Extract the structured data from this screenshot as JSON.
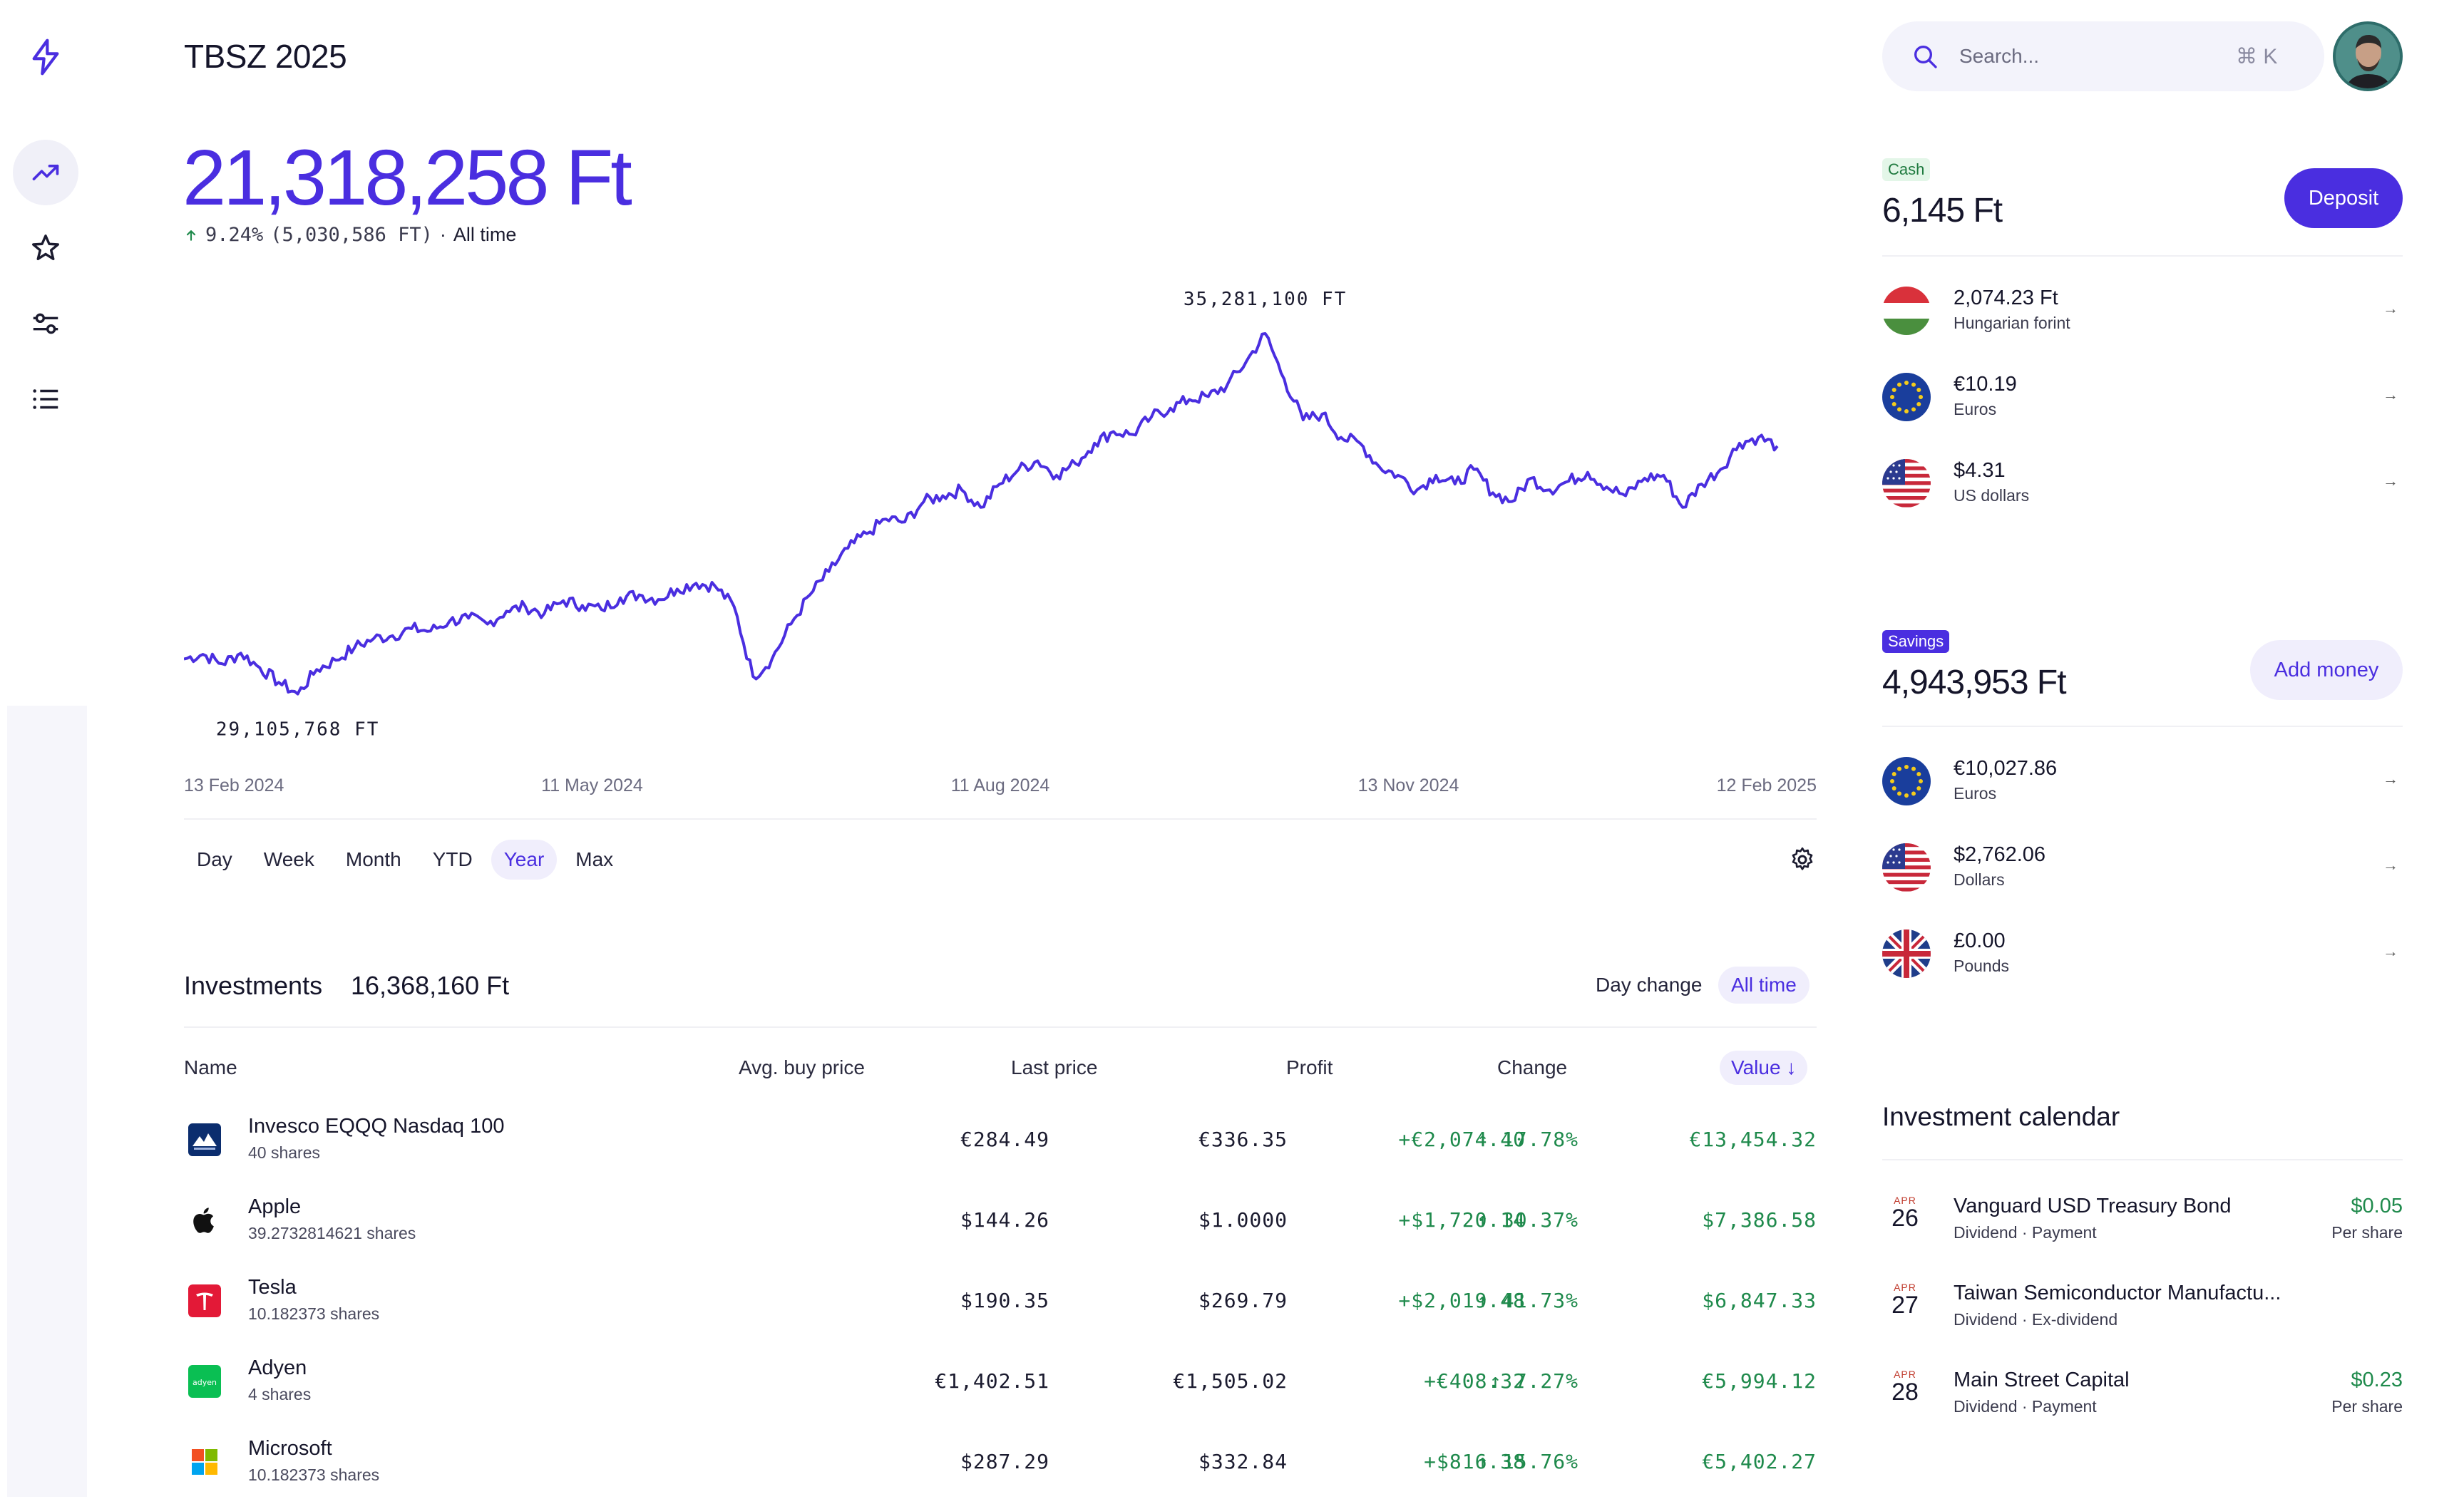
{
  "header": {
    "title": "TBSZ 2025",
    "search_placeholder": "Search...",
    "shortcut": "⌘ K"
  },
  "sidebar": {
    "items": [
      {
        "icon": "lightning-logo-icon"
      },
      {
        "icon": "trending-up-icon",
        "active": true
      },
      {
        "icon": "star-icon"
      },
      {
        "icon": "sliders-icon"
      },
      {
        "icon": "list-icon"
      }
    ]
  },
  "portfolio": {
    "value": "21,318,258 Ft",
    "gain_pct": "9.24%",
    "gain_abs": "(5,030,586 FT)",
    "period": "All time"
  },
  "chart_data": {
    "type": "line",
    "title": "",
    "xlabel": "",
    "ylabel": "",
    "x_tick_labels": [
      "13 Feb 2024",
      "11 May 2024",
      "11 Aug 2024",
      "13 Nov 2024",
      "12 Feb 2025"
    ],
    "annotations": {
      "max_label": "35,281,100 FT",
      "min_label": "29,105,768 FT"
    },
    "color": "#4a2ee0",
    "series": [
      {
        "values": [
          29.7,
          29.78,
          29.62,
          29.8,
          29.55,
          29.3,
          29.1,
          29.52,
          29.68,
          29.9,
          30.05,
          30.1,
          30.22,
          30.18,
          30.35,
          30.4,
          30.3,
          30.52,
          30.6,
          30.48,
          30.7,
          30.62,
          30.55,
          30.75,
          30.8,
          30.72,
          30.9,
          31.0,
          30.95,
          30.6,
          29.4,
          29.7,
          30.3,
          30.8,
          31.2,
          31.6,
          31.85,
          32.1,
          32.05,
          32.4,
          32.5,
          32.6,
          32.3,
          32.7,
          32.95,
          33.1,
          32.85,
          33.05,
          33.4,
          33.6,
          33.55,
          33.85,
          34.0,
          34.15,
          34.2,
          34.4,
          34.8,
          35.28,
          34.5,
          33.8,
          33.9,
          33.5,
          33.4,
          33.0,
          32.85,
          32.6,
          32.85,
          32.7,
          32.95,
          32.55,
          32.4,
          32.8,
          32.6,
          32.75,
          32.9,
          32.65,
          32.5,
          32.8,
          32.85,
          32.3,
          32.7,
          32.95,
          33.4,
          33.5,
          33.35
        ]
      }
    ]
  },
  "ranges": [
    "Day",
    "Week",
    "Month",
    "YTD",
    "Year",
    "Max"
  ],
  "active_range": "Year",
  "investments": {
    "title": "Investments",
    "total": "16,368,160 Ft",
    "toggles": [
      "Day change",
      "All time"
    ],
    "columns": [
      "Name",
      "Avg. buy price",
      "Last price",
      "Profit",
      "Change",
      "Value ↓"
    ],
    "rows": [
      {
        "name": "Invesco EQQQ Nasdaq 100",
        "shares": "40 shares",
        "avg": "€284.49",
        "last": "€336.35",
        "profit": "+€2,074.40",
        "change": "↑ 17.78%",
        "value": "€13,454.32",
        "logo": "invesco"
      },
      {
        "name": "Apple",
        "shares": "39.2732814621 shares",
        "avg": "$144.26",
        "last": "$1.0000",
        "profit": "+$1,720.14",
        "change": "↑ 30.37%",
        "value": "$7,386.58",
        "logo": "apple"
      },
      {
        "name": "Tesla",
        "shares": "10.182373 shares",
        "avg": "$190.35",
        "last": "$269.79",
        "profit": "+$2,019.48",
        "change": "↑ 41.73%",
        "value": "$6,847.33",
        "logo": "tesla"
      },
      {
        "name": "Adyen",
        "shares": "4 shares",
        "avg": "€1,402.51",
        "last": "€1,505.02",
        "profit": "+€408.32",
        "change": "↑ 7.27%",
        "value": "€5,994.12",
        "logo": "adyen"
      },
      {
        "name": "Microsoft",
        "shares": "10.182373 shares",
        "avg": "$287.29",
        "last": "$332.84",
        "profit": "+$816.38",
        "change": "↑ 15.76%",
        "value": "€5,402.27",
        "logo": "microsoft"
      }
    ]
  },
  "cash": {
    "tag": "Cash",
    "amount": "6,145 Ft",
    "button": "Deposit",
    "accounts": [
      {
        "amount": "2,074.23 Ft",
        "currency": "Hungarian forint",
        "flag": "hu"
      },
      {
        "amount": "€10.19",
        "currency": "Euros",
        "flag": "eu"
      },
      {
        "amount": "$4.31",
        "currency": "US dollars",
        "flag": "us"
      }
    ]
  },
  "savings": {
    "tag": "Savings",
    "amount": "4,943,953 Ft",
    "button": "Add money",
    "accounts": [
      {
        "amount": "€10,027.86",
        "currency": "Euros",
        "flag": "eu"
      },
      {
        "amount": "$2,762.06",
        "currency": "Dollars",
        "flag": "us"
      },
      {
        "amount": "£0.00",
        "currency": "Pounds",
        "flag": "gb"
      }
    ]
  },
  "calendar": {
    "title": "Investment calendar",
    "events": [
      {
        "month": "APR",
        "day": "26",
        "title": "Vanguard USD Treasury Bond",
        "sub": "Dividend · Payment",
        "amount": "$0.05",
        "unit": "Per share"
      },
      {
        "month": "APR",
        "day": "27",
        "title": "Taiwan Semiconductor Manufactu...",
        "sub": "Dividend · Ex-dividend",
        "amount": "",
        "unit": ""
      },
      {
        "month": "APR",
        "day": "28",
        "title": "Main Street Capital",
        "sub": "Dividend · Payment",
        "amount": "$0.23",
        "unit": "Per share"
      }
    ]
  }
}
